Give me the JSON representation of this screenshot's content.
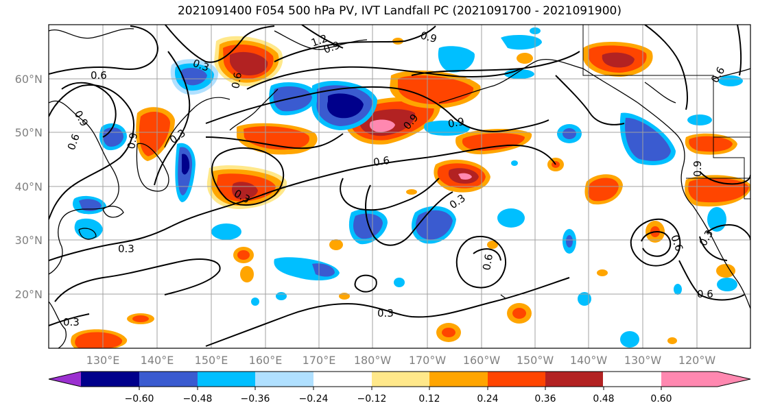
{
  "title": "2021091400 F054 500 hPa PV, IVT Landfall PC (2021091700 - 2021091900)",
  "lat_labels": [
    "60°N",
    "50°N",
    "40°N",
    "30°N",
    "20°N"
  ],
  "lon_labels": [
    "130°E",
    "140°E",
    "150°E",
    "160°E",
    "170°E",
    "180°W",
    "170°W",
    "160°W",
    "150°W",
    "140°W",
    "130°W",
    "120°W"
  ],
  "colorbar": {
    "colors": [
      "#9b30d0",
      "#00008b",
      "#3a5bd0",
      "#00bfff",
      "#b0e0ff",
      "#ffffff",
      "#ffe88a",
      "#ffa500",
      "#ff4500",
      "#b22222",
      "#ff88b0"
    ],
    "tick_labels": [
      "−0.60",
      "−0.48",
      "−0.36",
      "−0.24",
      "−0.12",
      "0.12",
      "0.24",
      "0.36",
      "0.48",
      "0.60"
    ]
  },
  "contour_labels": [
    "0.6",
    "0.3",
    "1.2",
    "0.9",
    "0.9",
    "0.9",
    "0.6",
    "0.9",
    "0.3",
    "0.9",
    "0.6",
    "0.3",
    "0.9",
    "0.6",
    "0.3",
    "0.3",
    "0.6",
    "0.6",
    "0.3",
    "0.6",
    "0.9",
    "0.6",
    "0.3",
    "0.3"
  ]
}
